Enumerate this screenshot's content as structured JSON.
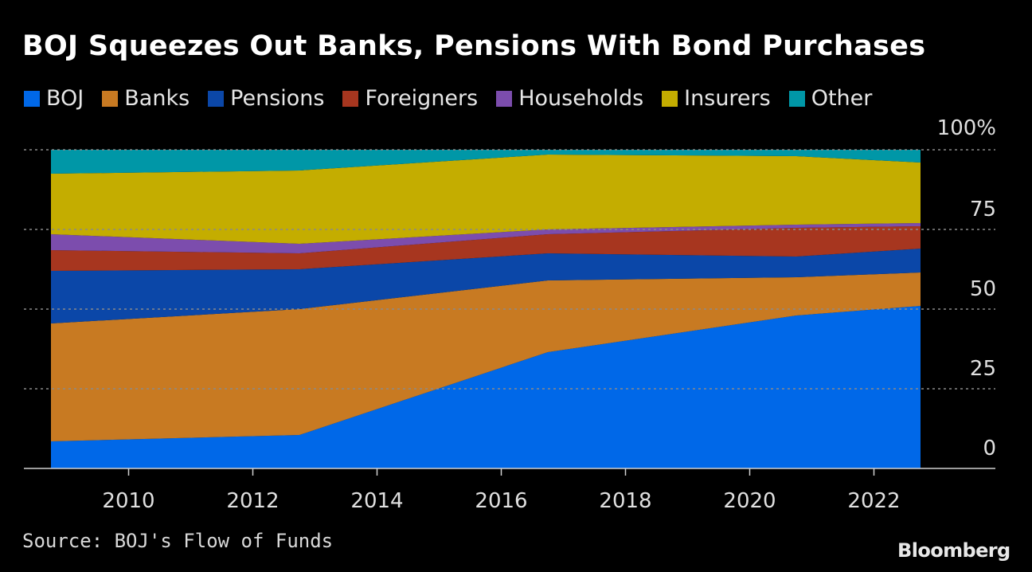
{
  "title": "BOJ Squeezes Out Banks, Pensions With Bond Purchases",
  "source": "Source: BOJ's Flow of Funds",
  "logo": "Bloomberg",
  "chart_data": {
    "type": "area",
    "stacked": true,
    "title": "BOJ Squeezes Out Banks, Pensions With Bond Purchases",
    "xlabel": "",
    "ylabel": "",
    "x": [
      2008.75,
      2012.75,
      2016.75,
      2020.75,
      2022.75
    ],
    "xticks": [
      "2010",
      "2012",
      "2014",
      "2016",
      "2018",
      "2020",
      "2022"
    ],
    "yticks": [
      "0",
      "25",
      "50",
      "75",
      "100%"
    ],
    "ylim": [
      0,
      100
    ],
    "grid": true,
    "legend_position": "top",
    "series": [
      {
        "name": "BOJ",
        "color": "#0068e8",
        "values": [
          8.5,
          10.5,
          36.5,
          48,
          51
        ]
      },
      {
        "name": "Banks",
        "color": "#c87a22",
        "values": [
          37,
          39.5,
          22.5,
          12,
          10.5
        ]
      },
      {
        "name": "Pensions",
        "color": "#0b47a8",
        "values": [
          16.5,
          12.5,
          8.5,
          6.5,
          7.5
        ]
      },
      {
        "name": "Foreigners",
        "color": "#a7361f",
        "values": [
          6.5,
          5,
          6,
          9,
          7
        ]
      },
      {
        "name": "Households",
        "color": "#7c4dad",
        "values": [
          5,
          3,
          1.5,
          1,
          1
        ]
      },
      {
        "name": "Insurers",
        "color": "#c4ad00",
        "values": [
          19,
          23,
          23.5,
          21.5,
          19
        ]
      },
      {
        "name": "Other",
        "color": "#0097a7",
        "values": [
          7.5,
          6.5,
          1.5,
          2,
          4
        ]
      }
    ]
  }
}
